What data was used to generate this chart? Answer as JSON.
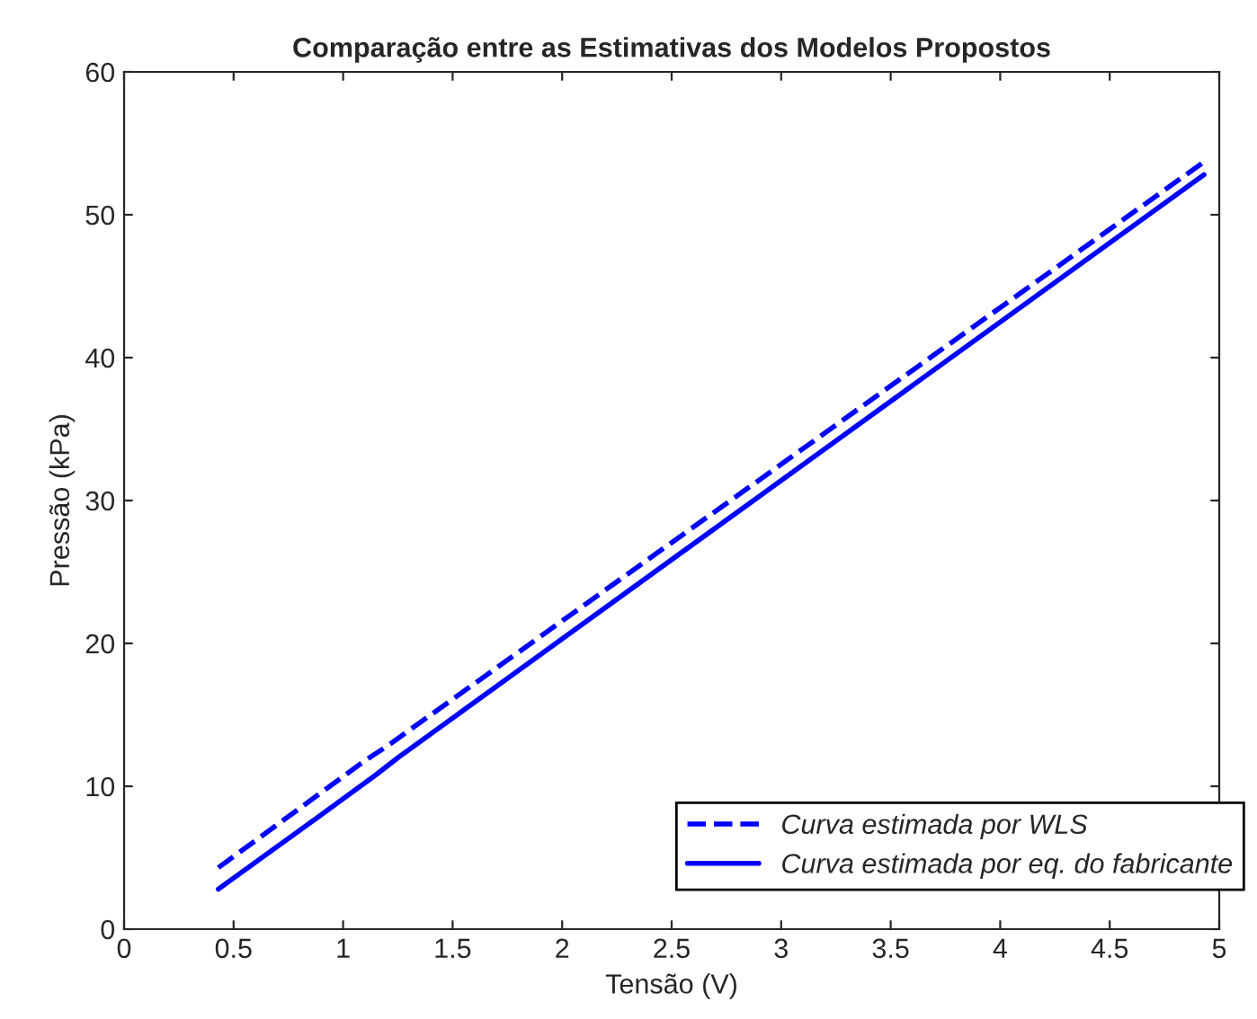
{
  "chart_data": {
    "type": "line",
    "title": "Comparação entre as Estimativas dos Modelos Propostos",
    "xlabel": "Tensão (V)",
    "ylabel": "Pressão (kPa)",
    "series": [
      {
        "name": "Curva estimada por WLS",
        "color": "#0000ff",
        "line_style": "dashed",
        "x": [
          0.43,
          1.1,
          1.2,
          4.93
        ],
        "values": [
          4.3,
          11.8,
          12.8,
          53.7
        ]
      },
      {
        "name": "Curva estimada por eq. do fabricante",
        "color": "#0000ff",
        "line_style": "solid",
        "x": [
          0.43,
          0.9,
          1.15,
          1.25,
          4.93
        ],
        "values": [
          2.8,
          8.0,
          10.8,
          12.0,
          52.8
        ]
      }
    ],
    "xlim": [
      0,
      5
    ],
    "xticks": [
      0,
      0.5,
      1,
      1.5,
      2,
      2.5,
      3,
      3.5,
      4,
      4.5,
      5
    ],
    "ylim": [
      0,
      60
    ],
    "yticks": [
      0,
      10,
      20,
      30,
      40,
      50,
      60
    ],
    "grid": false,
    "legend": "bottom right",
    "marker": "none"
  }
}
